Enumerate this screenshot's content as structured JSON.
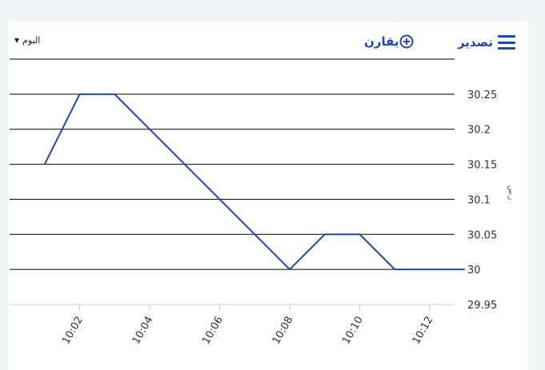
{
  "toolbar": {
    "export_label": "تصدير",
    "menu_icon": "hamburger-menu-icon",
    "compare_label": "يقارن",
    "compare_icon": "plus-circle-icon",
    "period_label": "اليوم",
    "period_icon": "caret-down-icon",
    "accent_color": "#1e47b8"
  },
  "chart_data": {
    "type": "line",
    "x": [
      "10:01",
      "10:02",
      "10:03",
      "10:08",
      "10:09",
      "10:10",
      "10:11",
      "10:13"
    ],
    "series": [
      {
        "values": [
          30.15,
          30.25,
          30.25,
          30.0,
          30.05,
          30.05,
          30.0,
          30.0
        ],
        "color": "#1e47b8"
      }
    ],
    "x_ticks": [
      "10:02",
      "10:04",
      "10:06",
      "10:08",
      "10:10",
      "10:12"
    ],
    "y_ticks": [
      "29.95",
      "30",
      "30.05",
      "30.1",
      "30.15",
      "30.2",
      "30.25"
    ],
    "ylim": [
      29.95,
      30.3
    ],
    "xlim": [
      "10:00",
      "10:12"
    ],
    "y_unit_label": "ر.س",
    "grid": true
  }
}
